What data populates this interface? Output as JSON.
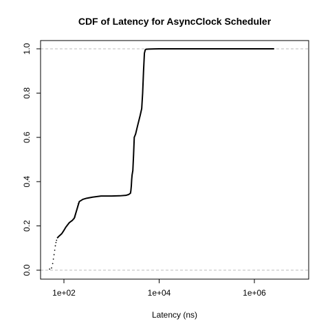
{
  "chart_data": {
    "type": "line",
    "title": "CDF of Latency for AsyncClock Scheduler",
    "xlabel": "Latency (ns)",
    "ylabel": "",
    "x_scale": "log10",
    "xlim": [
      30,
      12000000
    ],
    "ylim": [
      0,
      1
    ],
    "grid": false,
    "reference_lines_y": [
      0,
      1
    ],
    "x_ticks": [
      {
        "value": 100,
        "label": "1e+02"
      },
      {
        "value": 10000,
        "label": "1e+04"
      },
      {
        "value": 1000000,
        "label": "1e+06"
      }
    ],
    "y_ticks": [
      {
        "value": 0.0,
        "label": "0.0"
      },
      {
        "value": 0.2,
        "label": "0.2"
      },
      {
        "value": 0.4,
        "label": "0.4"
      },
      {
        "value": 0.6,
        "label": "0.6"
      },
      {
        "value": 0.8,
        "label": "0.8"
      },
      {
        "value": 1.0,
        "label": "1.0"
      }
    ],
    "sparse_points": [
      {
        "x": 50,
        "y": 0.005
      },
      {
        "x": 55,
        "y": 0.01
      },
      {
        "x": 58,
        "y": 0.03
      },
      {
        "x": 60,
        "y": 0.05
      },
      {
        "x": 62,
        "y": 0.07
      },
      {
        "x": 64,
        "y": 0.09
      },
      {
        "x": 66,
        "y": 0.11
      },
      {
        "x": 68,
        "y": 0.125
      },
      {
        "x": 70,
        "y": 0.135
      },
      {
        "x": 170,
        "y": 0.24
      },
      {
        "x": 175,
        "y": 0.25
      },
      {
        "x": 180,
        "y": 0.26
      },
      {
        "x": 185,
        "y": 0.27
      },
      {
        "x": 190,
        "y": 0.28
      },
      {
        "x": 195,
        "y": 0.29
      },
      {
        "x": 200,
        "y": 0.3
      }
    ],
    "series": [
      {
        "x": [
          72,
          80,
          90,
          100,
          110,
          130,
          150,
          165,
          210,
          250,
          300,
          400,
          600,
          1000,
          1500,
          2000,
          2300,
          2500,
          2550,
          2600,
          2650,
          2700,
          2750,
          2800,
          2900,
          3000,
          3200,
          3500,
          4000,
          4300,
          4500,
          4700,
          4900,
          5100,
          5300,
          6000,
          8000,
          10000,
          50000,
          100000,
          1000000,
          2600000
        ],
        "y": [
          0.145,
          0.155,
          0.165,
          0.18,
          0.195,
          0.215,
          0.225,
          0.235,
          0.31,
          0.32,
          0.325,
          0.33,
          0.335,
          0.335,
          0.336,
          0.338,
          0.342,
          0.348,
          0.36,
          0.38,
          0.41,
          0.43,
          0.44,
          0.45,
          0.52,
          0.6,
          0.615,
          0.65,
          0.7,
          0.73,
          0.8,
          0.9,
          0.98,
          0.995,
          0.998,
          0.999,
          0.9995,
          1.0,
          1.0,
          1.0,
          1.0,
          1.0
        ]
      }
    ]
  }
}
